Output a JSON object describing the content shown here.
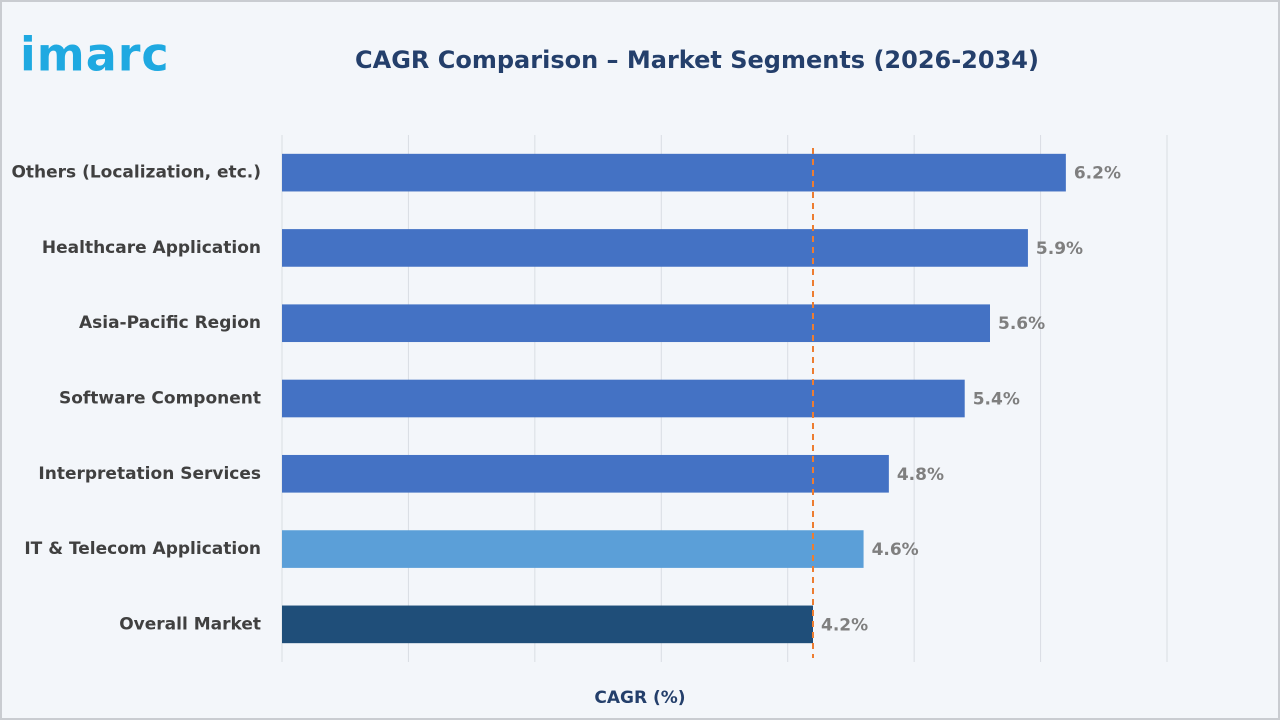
{
  "logo": "imarc",
  "chart_data": {
    "type": "bar",
    "orientation": "horizontal",
    "title": "CAGR Comparison – Market Segments (2026-2034)",
    "x_label": "CAGR (%)",
    "categories": [
      "Others (Localization, etc.)",
      "Healthcare Application",
      "Asia-Pacific Region",
      "Software Component",
      "Interpretation Services",
      "IT & Telecom Application",
      "Overall Market"
    ],
    "values": [
      6.2,
      5.9,
      5.6,
      5.4,
      4.8,
      4.6,
      4.2
    ],
    "value_labels": [
      "6.2%",
      "5.9%",
      "5.6%",
      "5.4%",
      "4.8%",
      "4.6%",
      "4.2%"
    ],
    "colors": [
      "#4472c4",
      "#4472c4",
      "#4472c4",
      "#4472c4",
      "#4472c4",
      "#5b9fd8",
      "#1f4e79"
    ],
    "xlim": [
      0,
      7
    ],
    "xticks": [
      0,
      1,
      2,
      3,
      4,
      5,
      6,
      7
    ],
    "grid": true,
    "reference_line": {
      "value": 4.2,
      "color": "#ed7d31"
    }
  }
}
